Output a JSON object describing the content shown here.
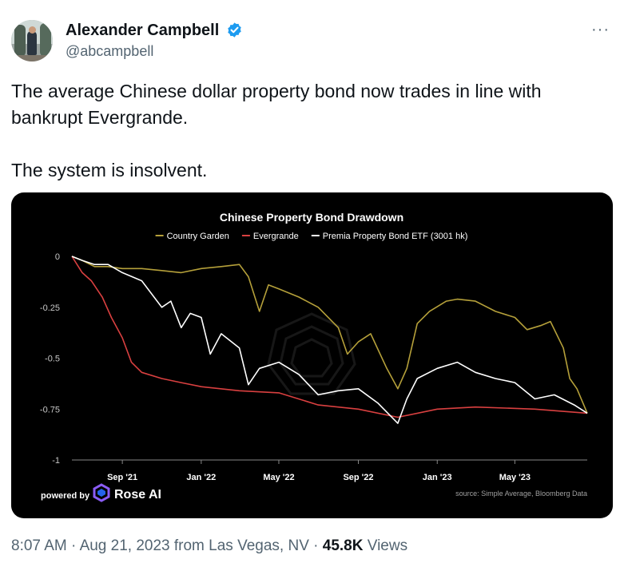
{
  "author": {
    "name": "Alexander Campbell",
    "handle": "@abcampbell"
  },
  "more_label": "···",
  "tweet": {
    "paragraph1": "The average Chinese dollar property bond now trades in line with bankrupt Evergrande.",
    "paragraph2": "The system is insolvent."
  },
  "chart_data": {
    "type": "line",
    "title": "Chinese Property Bond Drawdown",
    "ylim": [
      -1,
      0
    ],
    "yticks": [
      "0",
      "-0.25",
      "-0.5",
      "-0.75",
      "-1"
    ],
    "ytick_values": [
      0,
      -0.25,
      -0.5,
      -0.75,
      -1
    ],
    "xlim": [
      "2021-06-15",
      "2023-08-21"
    ],
    "xticks": [
      "Sep '21",
      "Jan '22",
      "May '22",
      "Sep '22",
      "Jan '23",
      "May '23"
    ],
    "xtick_dates": [
      "2021-09-01",
      "2022-01-01",
      "2022-05-01",
      "2022-09-01",
      "2023-01-01",
      "2023-05-01"
    ],
    "legend_position": "top-center",
    "series": [
      {
        "name": "Country Garden",
        "color": "#b5a03a",
        "points": [
          [
            "2021-06-15",
            0
          ],
          [
            "2021-07-01",
            -0.02
          ],
          [
            "2021-07-20",
            -0.05
          ],
          [
            "2021-08-10",
            -0.05
          ],
          [
            "2021-09-01",
            -0.06
          ],
          [
            "2021-10-01",
            -0.06
          ],
          [
            "2021-11-01",
            -0.07
          ],
          [
            "2021-12-01",
            -0.08
          ],
          [
            "2022-01-01",
            -0.06
          ],
          [
            "2022-02-01",
            -0.05
          ],
          [
            "2022-03-01",
            -0.04
          ],
          [
            "2022-03-15",
            -0.1
          ],
          [
            "2022-04-01",
            -0.27
          ],
          [
            "2022-04-15",
            -0.14
          ],
          [
            "2022-05-01",
            -0.16
          ],
          [
            "2022-06-01",
            -0.2
          ],
          [
            "2022-07-01",
            -0.25
          ],
          [
            "2022-08-01",
            -0.35
          ],
          [
            "2022-08-15",
            -0.48
          ],
          [
            "2022-09-01",
            -0.42
          ],
          [
            "2022-09-20",
            -0.38
          ],
          [
            "2022-10-15",
            -0.55
          ],
          [
            "2022-11-01",
            -0.65
          ],
          [
            "2022-11-15",
            -0.55
          ],
          [
            "2022-12-01",
            -0.33
          ],
          [
            "2022-12-20",
            -0.27
          ],
          [
            "2023-01-15",
            -0.22
          ],
          [
            "2023-02-01",
            -0.21
          ],
          [
            "2023-03-01",
            -0.22
          ],
          [
            "2023-04-01",
            -0.27
          ],
          [
            "2023-05-01",
            -0.3
          ],
          [
            "2023-05-20",
            -0.36
          ],
          [
            "2023-06-10",
            -0.34
          ],
          [
            "2023-06-25",
            -0.32
          ],
          [
            "2023-07-15",
            -0.45
          ],
          [
            "2023-07-25",
            -0.6
          ],
          [
            "2023-08-05",
            -0.65
          ],
          [
            "2023-08-21",
            -0.77
          ]
        ]
      },
      {
        "name": "Evergrande",
        "color": "#d94040",
        "points": [
          [
            "2021-06-15",
            0
          ],
          [
            "2021-07-01",
            -0.08
          ],
          [
            "2021-07-15",
            -0.12
          ],
          [
            "2021-08-01",
            -0.2
          ],
          [
            "2021-08-15",
            -0.3
          ],
          [
            "2021-09-01",
            -0.4
          ],
          [
            "2021-09-15",
            -0.52
          ],
          [
            "2021-10-01",
            -0.57
          ],
          [
            "2021-11-01",
            -0.6
          ],
          [
            "2021-12-01",
            -0.62
          ],
          [
            "2022-01-01",
            -0.64
          ],
          [
            "2022-03-01",
            -0.66
          ],
          [
            "2022-05-01",
            -0.67
          ],
          [
            "2022-07-01",
            -0.73
          ],
          [
            "2022-09-01",
            -0.75
          ],
          [
            "2022-11-01",
            -0.79
          ],
          [
            "2023-01-01",
            -0.75
          ],
          [
            "2023-03-01",
            -0.74
          ],
          [
            "2023-06-01",
            -0.75
          ],
          [
            "2023-08-21",
            -0.77
          ]
        ]
      },
      {
        "name": "Premia Property Bond ETF (3001 hk)",
        "color": "#ffffff",
        "points": [
          [
            "2021-06-15",
            0
          ],
          [
            "2021-07-01",
            -0.02
          ],
          [
            "2021-07-20",
            -0.04
          ],
          [
            "2021-08-10",
            -0.04
          ],
          [
            "2021-09-01",
            -0.08
          ],
          [
            "2021-10-01",
            -0.12
          ],
          [
            "2021-11-01",
            -0.25
          ],
          [
            "2021-11-15",
            -0.22
          ],
          [
            "2021-12-01",
            -0.35
          ],
          [
            "2021-12-15",
            -0.28
          ],
          [
            "2022-01-01",
            -0.3
          ],
          [
            "2022-01-15",
            -0.48
          ],
          [
            "2022-02-01",
            -0.38
          ],
          [
            "2022-03-01",
            -0.45
          ],
          [
            "2022-03-15",
            -0.63
          ],
          [
            "2022-04-01",
            -0.55
          ],
          [
            "2022-05-01",
            -0.52
          ],
          [
            "2022-06-01",
            -0.58
          ],
          [
            "2022-07-01",
            -0.68
          ],
          [
            "2022-08-01",
            -0.66
          ],
          [
            "2022-09-01",
            -0.65
          ],
          [
            "2022-10-01",
            -0.72
          ],
          [
            "2022-11-01",
            -0.82
          ],
          [
            "2022-11-15",
            -0.7
          ],
          [
            "2022-12-01",
            -0.6
          ],
          [
            "2023-01-01",
            -0.55
          ],
          [
            "2023-02-01",
            -0.52
          ],
          [
            "2023-03-01",
            -0.57
          ],
          [
            "2023-04-01",
            -0.6
          ],
          [
            "2023-05-01",
            -0.62
          ],
          [
            "2023-06-01",
            -0.7
          ],
          [
            "2023-07-01",
            -0.68
          ],
          [
            "2023-08-01",
            -0.73
          ],
          [
            "2023-08-21",
            -0.77
          ]
        ]
      }
    ],
    "source_note": "source: Simple Average, Bloomberg Data",
    "powered_by": "powered by",
    "brand": "Rose AI"
  },
  "footer": {
    "time": "8:07 AM",
    "sep1": " · ",
    "date": "Aug 21, 2023",
    "from_label": " from ",
    "location": "Las Vegas, NV",
    "sep2": " · ",
    "views_count": "45.8K",
    "views_label": " Views"
  }
}
